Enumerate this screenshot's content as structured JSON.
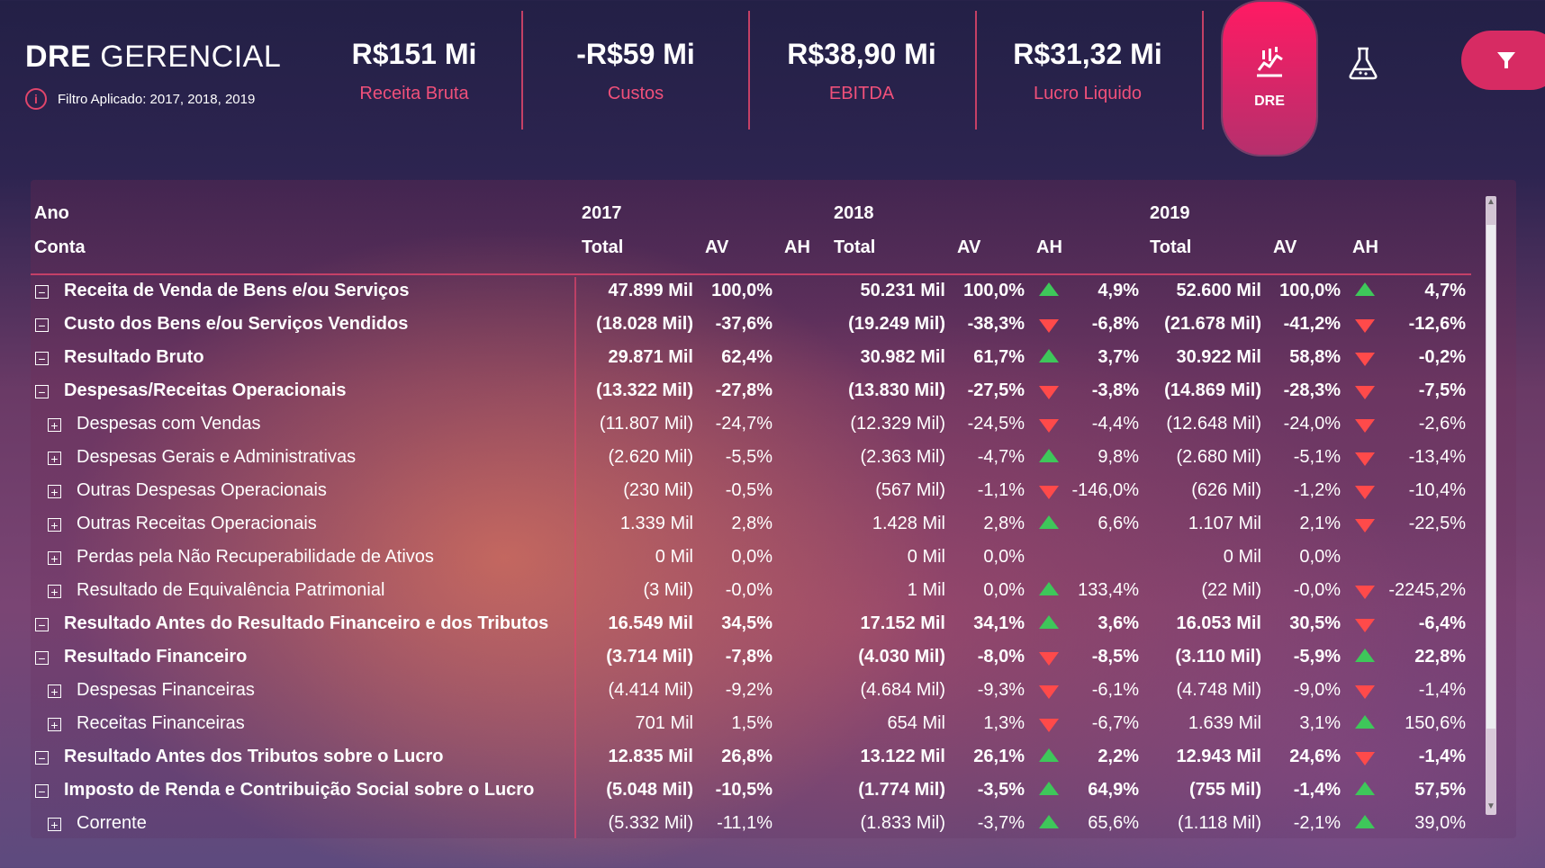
{
  "header": {
    "title_bold": "DRE",
    "title_rest": "GERENCIAL",
    "filter_text": "Filtro Aplicado: 2017, 2018, 2019",
    "kpis": [
      {
        "value": "R$151 Mi",
        "label": "Receita Bruta"
      },
      {
        "value": "-R$59 Mi",
        "label": "Custos"
      },
      {
        "value": "R$38,90 Mi",
        "label": "EBITDA"
      },
      {
        "value": "R$31,32 Mi",
        "label": "Lucro Liquido"
      }
    ],
    "dre_button_label": "DRE"
  },
  "colors": {
    "accent": "#e0456b",
    "up": "#3ec75a",
    "down": "#ff4a4a"
  },
  "table": {
    "row_header_year": "Ano",
    "row_header_account": "Conta",
    "years": [
      "2017",
      "2018",
      "2019"
    ],
    "col_total": "Total",
    "col_av": "AV",
    "col_ah": "AH",
    "rows": [
      {
        "name": "Receita de Venda de Bens e/ou Serviços",
        "bold": true,
        "level": 0,
        "icon": "minus",
        "y2017": [
          "47.899 Mil",
          "100,0%",
          ""
        ],
        "y2018": [
          "50.231 Mil",
          "100,0%",
          "4,9%",
          "up"
        ],
        "y2019": [
          "52.600 Mil",
          "100,0%",
          "4,7%",
          "up"
        ]
      },
      {
        "name": "Custo dos Bens e/ou Serviços Vendidos",
        "bold": true,
        "level": 0,
        "icon": "minus",
        "y2017": [
          "(18.028 Mil)",
          "-37,6%",
          ""
        ],
        "y2018": [
          "(19.249 Mil)",
          "-38,3%",
          "-6,8%",
          "down"
        ],
        "y2019": [
          "(21.678 Mil)",
          "-41,2%",
          "-12,6%",
          "down"
        ]
      },
      {
        "name": "Resultado Bruto",
        "bold": true,
        "level": 0,
        "icon": "minus",
        "y2017": [
          "29.871 Mil",
          "62,4%",
          ""
        ],
        "y2018": [
          "30.982 Mil",
          "61,7%",
          "3,7%",
          "up"
        ],
        "y2019": [
          "30.922 Mil",
          "58,8%",
          "-0,2%",
          "down"
        ]
      },
      {
        "name": "Despesas/Receitas Operacionais",
        "bold": true,
        "level": 0,
        "icon": "minus",
        "y2017": [
          "(13.322 Mil)",
          "-27,8%",
          ""
        ],
        "y2018": [
          "(13.830 Mil)",
          "-27,5%",
          "-3,8%",
          "down"
        ],
        "y2019": [
          "(14.869 Mil)",
          "-28,3%",
          "-7,5%",
          "down"
        ]
      },
      {
        "name": "Despesas com Vendas",
        "bold": false,
        "level": 1,
        "icon": "plus",
        "y2017": [
          "(11.807 Mil)",
          "-24,7%",
          ""
        ],
        "y2018": [
          "(12.329 Mil)",
          "-24,5%",
          "-4,4%",
          "down"
        ],
        "y2019": [
          "(12.648 Mil)",
          "-24,0%",
          "-2,6%",
          "down"
        ]
      },
      {
        "name": "Despesas Gerais e Administrativas",
        "bold": false,
        "level": 1,
        "icon": "plus",
        "y2017": [
          "(2.620 Mil)",
          "-5,5%",
          ""
        ],
        "y2018": [
          "(2.363 Mil)",
          "-4,7%",
          "9,8%",
          "up"
        ],
        "y2019": [
          "(2.680 Mil)",
          "-5,1%",
          "-13,4%",
          "down"
        ]
      },
      {
        "name": "Outras Despesas Operacionais",
        "bold": false,
        "level": 1,
        "icon": "plus",
        "y2017": [
          "(230 Mil)",
          "-0,5%",
          ""
        ],
        "y2018": [
          "(567 Mil)",
          "-1,1%",
          "-146,0%",
          "down"
        ],
        "y2019": [
          "(626 Mil)",
          "-1,2%",
          "-10,4%",
          "down"
        ]
      },
      {
        "name": "Outras Receitas Operacionais",
        "bold": false,
        "level": 1,
        "icon": "plus",
        "y2017": [
          "1.339 Mil",
          "2,8%",
          ""
        ],
        "y2018": [
          "1.428 Mil",
          "2,8%",
          "6,6%",
          "up"
        ],
        "y2019": [
          "1.107 Mil",
          "2,1%",
          "-22,5%",
          "down"
        ]
      },
      {
        "name": "Perdas pela Não Recuperabilidade de Ativos",
        "bold": false,
        "level": 1,
        "icon": "plus",
        "y2017": [
          "0 Mil",
          "0,0%",
          ""
        ],
        "y2018": [
          "0 Mil",
          "0,0%",
          "",
          ""
        ],
        "y2019": [
          "0 Mil",
          "0,0%",
          "",
          ""
        ]
      },
      {
        "name": "Resultado de Equivalência Patrimonial",
        "bold": false,
        "level": 1,
        "icon": "plus",
        "y2017": [
          "(3 Mil)",
          "-0,0%",
          ""
        ],
        "y2018": [
          "1 Mil",
          "0,0%",
          "133,4%",
          "up"
        ],
        "y2019": [
          "(22 Mil)",
          "-0,0%",
          "-2245,2%",
          "down"
        ]
      },
      {
        "name": "Resultado Antes do Resultado Financeiro e dos Tributos",
        "bold": true,
        "level": 0,
        "icon": "minus",
        "y2017": [
          "16.549 Mil",
          "34,5%",
          ""
        ],
        "y2018": [
          "17.152 Mil",
          "34,1%",
          "3,6%",
          "up"
        ],
        "y2019": [
          "16.053 Mil",
          "30,5%",
          "-6,4%",
          "down"
        ]
      },
      {
        "name": "Resultado Financeiro",
        "bold": true,
        "level": 0,
        "icon": "minus",
        "y2017": [
          "(3.714 Mil)",
          "-7,8%",
          ""
        ],
        "y2018": [
          "(4.030 Mil)",
          "-8,0%",
          "-8,5%",
          "down"
        ],
        "y2019": [
          "(3.110 Mil)",
          "-5,9%",
          "22,8%",
          "up"
        ]
      },
      {
        "name": "Despesas Financeiras",
        "bold": false,
        "level": 1,
        "icon": "plus",
        "y2017": [
          "(4.414 Mil)",
          "-9,2%",
          ""
        ],
        "y2018": [
          "(4.684 Mil)",
          "-9,3%",
          "-6,1%",
          "down"
        ],
        "y2019": [
          "(4.748 Mil)",
          "-9,0%",
          "-1,4%",
          "down"
        ]
      },
      {
        "name": "Receitas Financeiras",
        "bold": false,
        "level": 1,
        "icon": "plus",
        "y2017": [
          "701 Mil",
          "1,5%",
          ""
        ],
        "y2018": [
          "654 Mil",
          "1,3%",
          "-6,7%",
          "down"
        ],
        "y2019": [
          "1.639 Mil",
          "3,1%",
          "150,6%",
          "up"
        ]
      },
      {
        "name": "Resultado Antes dos Tributos sobre o Lucro",
        "bold": true,
        "level": 0,
        "icon": "minus",
        "y2017": [
          "12.835 Mil",
          "26,8%",
          ""
        ],
        "y2018": [
          "13.122 Mil",
          "26,1%",
          "2,2%",
          "up"
        ],
        "y2019": [
          "12.943 Mil",
          "24,6%",
          "-1,4%",
          "down"
        ]
      },
      {
        "name": "Imposto de Renda e Contribuição Social sobre o Lucro",
        "bold": true,
        "level": 0,
        "icon": "minus",
        "y2017": [
          "(5.048 Mil)",
          "-10,5%",
          ""
        ],
        "y2018": [
          "(1.774 Mil)",
          "-3,5%",
          "64,9%",
          "up"
        ],
        "y2019": [
          "(755 Mil)",
          "-1,4%",
          "57,5%",
          "up"
        ]
      },
      {
        "name": "Corrente",
        "bold": false,
        "level": 1,
        "icon": "plus",
        "y2017": [
          "(5.332 Mil)",
          "-11,1%",
          ""
        ],
        "y2018": [
          "(1.833 Mil)",
          "-3,7%",
          "65,6%",
          "up"
        ],
        "y2019": [
          "(1.118 Mil)",
          "-2,1%",
          "39,0%",
          "up"
        ]
      }
    ]
  }
}
